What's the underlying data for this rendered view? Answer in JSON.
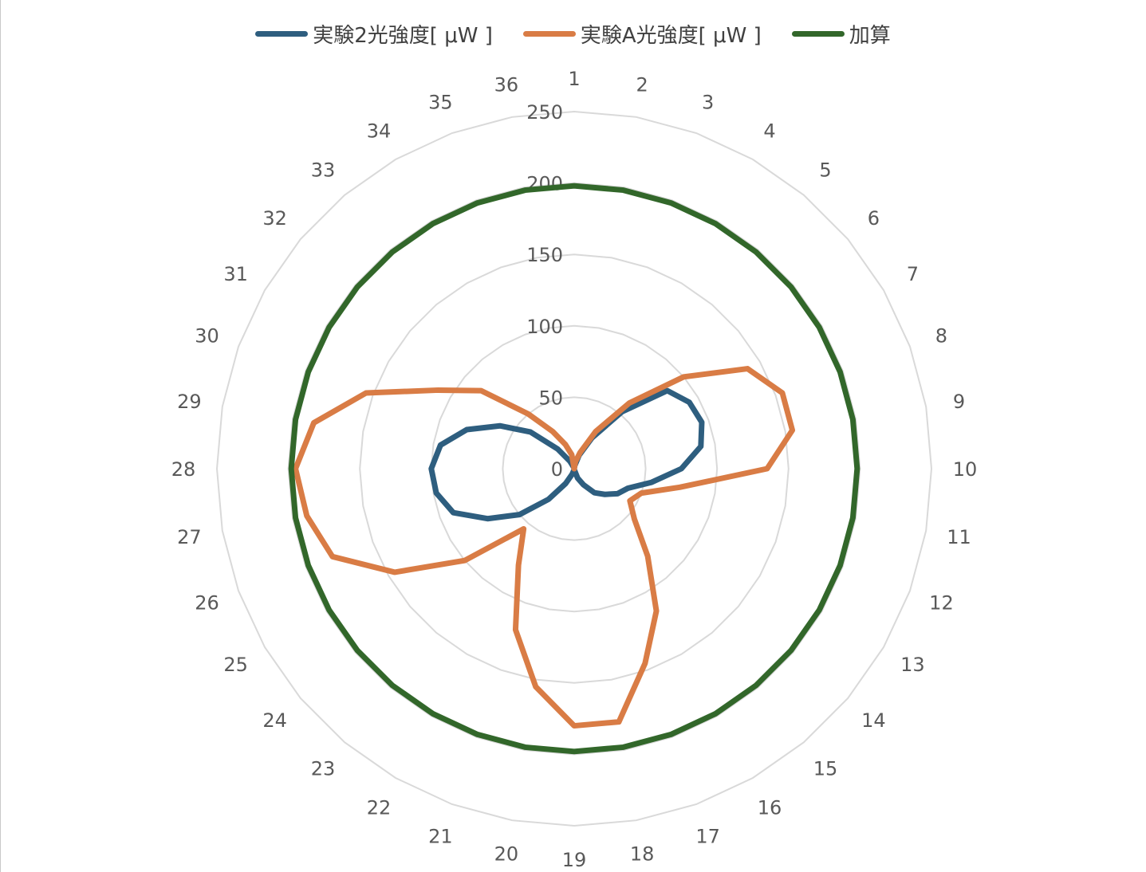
{
  "chart_data": {
    "type": "radar",
    "categories": [
      "1",
      "2",
      "3",
      "4",
      "5",
      "6",
      "7",
      "8",
      "9",
      "10",
      "11",
      "12",
      "13",
      "14",
      "15",
      "16",
      "17",
      "18",
      "19",
      "20",
      "21",
      "22",
      "23",
      "24",
      "25",
      "26",
      "27",
      "28",
      "29",
      "30",
      "31",
      "32",
      "33",
      "34",
      "35",
      "36"
    ],
    "radial_ticks": [
      0,
      50,
      100,
      150,
      200,
      250
    ],
    "rmax": 250,
    "grid": true,
    "legend_position": "top",
    "series": [
      {
        "name": "実験2光強度[ μW ]",
        "color": "#2e5e7f",
        "values": [
          0,
          2,
          10,
          25,
          52,
          85,
          93,
          95,
          90,
          75,
          55,
          40,
          35,
          28,
          22,
          13,
          7,
          1,
          0,
          1,
          4,
          12,
          28,
          50,
          70,
          90,
          98,
          100,
          95,
          80,
          60,
          40,
          18,
          6,
          1,
          0
        ]
      },
      {
        "name": "実験A光強度[ μW ]",
        "color": "#d97c45",
        "values": [
          0,
          5,
          12,
          30,
          60,
          100,
          140,
          155,
          155,
          135,
          75,
          50,
          45,
          55,
          80,
          115,
          145,
          180,
          180,
          155,
          120,
          78,
          55,
          100,
          145,
          180,
          190,
          195,
          185,
          155,
          110,
          85,
          50,
          30,
          18,
          10
        ]
      },
      {
        "name": "加算",
        "color": "#32672a",
        "values": [
          198,
          198,
          198,
          198,
          198,
          198,
          198,
          198,
          198,
          198,
          198,
          198,
          198,
          198,
          198,
          198,
          198,
          198,
          198,
          198,
          198,
          198,
          198,
          198,
          198,
          198,
          198,
          198,
          198,
          198,
          198,
          198,
          198,
          198,
          198,
          198
        ]
      }
    ]
  }
}
